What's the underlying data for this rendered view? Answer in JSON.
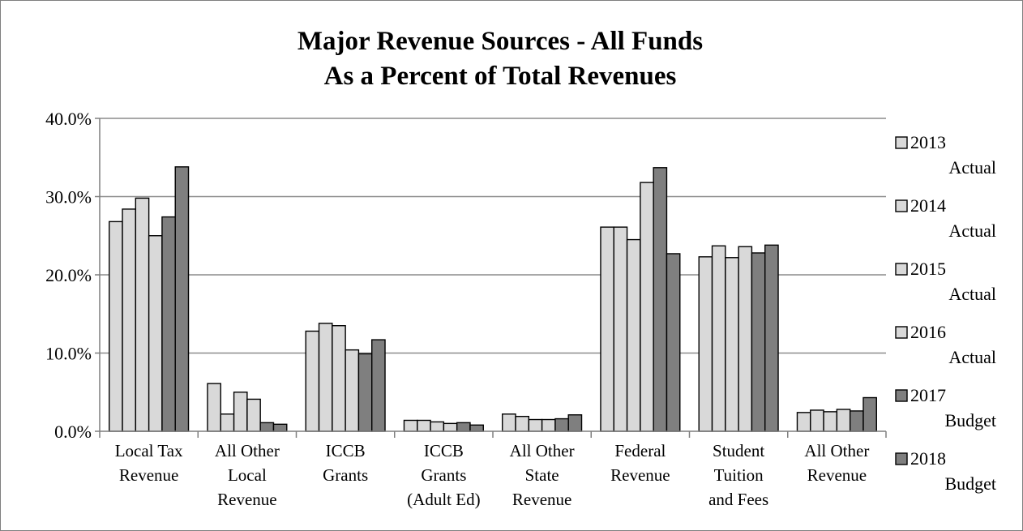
{
  "chart_data": {
    "type": "bar",
    "title": [
      "Major Revenue Sources - All Funds",
      "As a Percent of Total Revenues"
    ],
    "xlabel": "",
    "ylabel": "",
    "ylim": [
      0,
      40
    ],
    "yticks": [
      0,
      10,
      20,
      30,
      40
    ],
    "ytick_labels": [
      "0.0%",
      "10.0%",
      "20.0%",
      "30.0%",
      "40.0%"
    ],
    "grid": true,
    "legend_position": "right",
    "categories": [
      [
        "Local Tax",
        "Revenue"
      ],
      [
        "All Other",
        "Local",
        "Revenue"
      ],
      [
        "ICCB",
        "Grants"
      ],
      [
        "ICCB",
        "Grants",
        "(Adult Ed)"
      ],
      [
        "All Other",
        "State",
        "Revenue"
      ],
      [
        "Federal",
        "Revenue"
      ],
      [
        "Student",
        "Tuition",
        "and Fees"
      ],
      [
        "All Other",
        "Revenue"
      ]
    ],
    "series": [
      {
        "name": [
          "2013",
          "Actual"
        ],
        "color": "#d9d9d9",
        "values": [
          26.8,
          6.1,
          12.8,
          1.4,
          2.2,
          26.1,
          22.3,
          2.4
        ]
      },
      {
        "name": [
          "2014",
          "Actual"
        ],
        "color": "#d9d9d9",
        "values": [
          28.4,
          2.2,
          13.8,
          1.4,
          1.9,
          26.1,
          23.7,
          2.7
        ]
      },
      {
        "name": [
          "2015",
          "Actual"
        ],
        "color": "#d9d9d9",
        "values": [
          29.8,
          5.0,
          13.5,
          1.2,
          1.5,
          24.5,
          22.2,
          2.5
        ]
      },
      {
        "name": [
          "2016",
          "Actual"
        ],
        "color": "#d9d9d9",
        "values": [
          25.0,
          4.1,
          10.4,
          1.0,
          1.5,
          31.8,
          23.6,
          2.8
        ]
      },
      {
        "name": [
          "2017",
          "Budget"
        ],
        "color": "#7f7f7f",
        "values": [
          27.4,
          1.1,
          9.9,
          1.1,
          1.6,
          33.7,
          22.8,
          2.6
        ]
      },
      {
        "name": [
          "2018",
          "Budget"
        ],
        "color": "#7f7f7f",
        "values": [
          33.8,
          0.9,
          11.7,
          0.8,
          2.1,
          22.7,
          23.8,
          4.3
        ]
      }
    ]
  }
}
